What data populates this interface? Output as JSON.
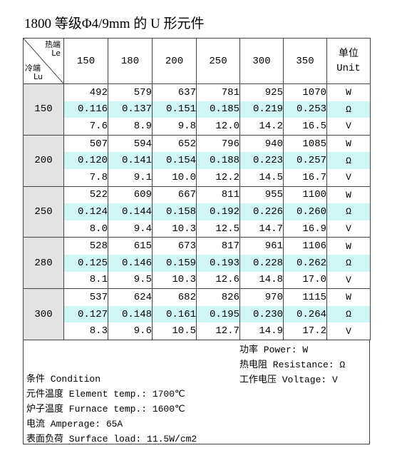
{
  "title": "1800 等级Φ4/9mm 的 U 形元件",
  "corner": {
    "hot_cn": "热端",
    "hot_en": "Le",
    "cold_cn": "冷端",
    "cold_en": "Lu"
  },
  "columns": [
    "150",
    "180",
    "200",
    "250",
    "300",
    "350"
  ],
  "unit_header": {
    "cn": "单位",
    "en": "Unit"
  },
  "units": [
    "W",
    "Ω",
    "V"
  ],
  "rows": [
    {
      "lu": "150",
      "power": [
        "492",
        "579",
        "637",
        "781",
        "925",
        "1070"
      ],
      "resistance": [
        "0.116",
        "0.137",
        "0.151",
        "0.185",
        "0.219",
        "0.253"
      ],
      "voltage": [
        "7.6",
        "8.9",
        "9.8",
        "12.0",
        "14.2",
        "16.5"
      ]
    },
    {
      "lu": "200",
      "power": [
        "507",
        "594",
        "652",
        "796",
        "940",
        "1085"
      ],
      "resistance": [
        "0.120",
        "0.141",
        "0.154",
        "0.188",
        "0.223",
        "0.257"
      ],
      "voltage": [
        "7.8",
        "9.1",
        "10.0",
        "12.2",
        "14.5",
        "16.7"
      ]
    },
    {
      "lu": "250",
      "power": [
        "522",
        "609",
        "667",
        "811",
        "955",
        "1100"
      ],
      "resistance": [
        "0.124",
        "0.144",
        "0.158",
        "0.192",
        "0.226",
        "0.260"
      ],
      "voltage": [
        "8.0",
        "9.4",
        "10.3",
        "12.5",
        "14.7",
        "16.9"
      ]
    },
    {
      "lu": "280",
      "power": [
        "528",
        "615",
        "673",
        "817",
        "961",
        "1106"
      ],
      "resistance": [
        "0.125",
        "0.146",
        "0.159",
        "0.193",
        "0.228",
        "0.262"
      ],
      "voltage": [
        "8.1",
        "9.5",
        "10.3",
        "12.6",
        "14.8",
        "17.0"
      ]
    },
    {
      "lu": "300",
      "power": [
        "537",
        "624",
        "682",
        "826",
        "970",
        "1115"
      ],
      "resistance": [
        "0.127",
        "0.148",
        "0.161",
        "0.195",
        "0.230",
        "0.264"
      ],
      "voltage": [
        "8.3",
        "9.6",
        "10.5",
        "12.7",
        "14.9",
        "17.2"
      ]
    }
  ],
  "legend": [
    "功率 Power: W",
    "热电阻 Resistance: Ω",
    "工作电压 Voltage: V"
  ],
  "conditions": {
    "heading": "条件 Condition",
    "element_temp": "元件温度 Element temp.: 1700℃",
    "furnace_temp": "炉子温度 Furnace temp.: 1600℃",
    "amperage": "电流 Amperage: 65A",
    "surface_load": "表面负荷 Surface load: 11.5W/cm2"
  },
  "colors": {
    "row_header_bg": "#e3e3e3",
    "highlight_row_bg": "#cff5f5",
    "border": "#444444"
  }
}
